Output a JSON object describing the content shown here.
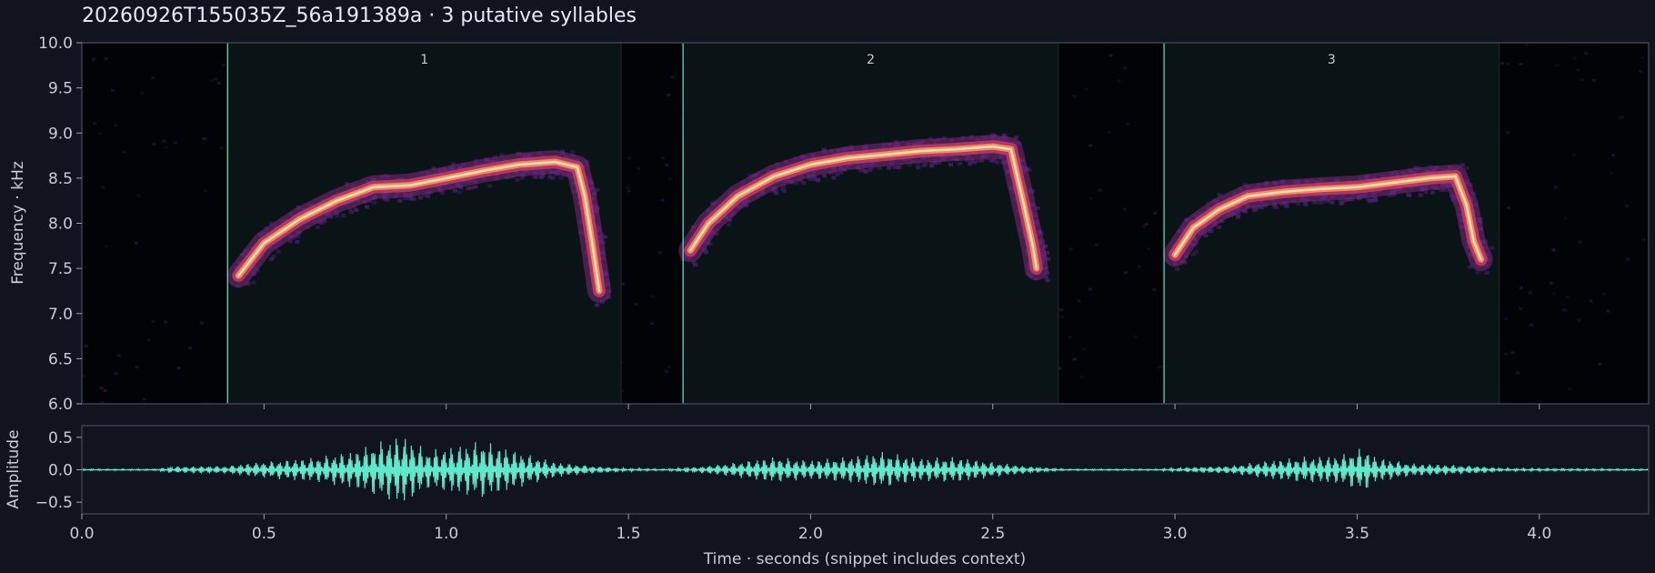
{
  "title": "20260926T155035Z_56a191389a  ·  3 putative syllables",
  "colors": {
    "background": "#11141f",
    "segment_line": "#5ed6b8",
    "waveform": "#5fe8cc",
    "spectrogram_colormap": "magma"
  },
  "chart_data": [
    {
      "type": "heatmap",
      "name": "spectrogram",
      "ylabel": "Frequency · kHz",
      "xlim": [
        0.0,
        4.3
      ],
      "ylim": [
        6.0,
        10.0
      ],
      "yticks": [
        "6.0",
        "6.5",
        "7.0",
        "7.5",
        "8.0",
        "8.5",
        "9.0",
        "9.5",
        "10.0"
      ],
      "xticks": [
        0.5,
        1.0,
        1.5,
        2.0,
        2.5,
        3.0,
        3.5,
        4.0
      ],
      "syllables": [
        {
          "label": "1",
          "start": 0.4,
          "end": 1.48
        },
        {
          "label": "2",
          "start": 1.65,
          "end": 2.68
        },
        {
          "label": "3",
          "start": 2.97,
          "end": 3.89
        }
      ],
      "contours": [
        {
          "syllable": "1",
          "points": [
            [
              0.43,
              7.42
            ],
            [
              0.5,
              7.78
            ],
            [
              0.6,
              8.05
            ],
            [
              0.7,
              8.25
            ],
            [
              0.8,
              8.4
            ],
            [
              0.9,
              8.42
            ],
            [
              1.0,
              8.5
            ],
            [
              1.1,
              8.58
            ],
            [
              1.2,
              8.65
            ],
            [
              1.3,
              8.68
            ],
            [
              1.36,
              8.62
            ],
            [
              1.38,
              8.3
            ],
            [
              1.4,
              7.8
            ],
            [
              1.42,
              7.25
            ]
          ]
        },
        {
          "syllable": "2",
          "points": [
            [
              1.67,
              7.7
            ],
            [
              1.72,
              8.0
            ],
            [
              1.8,
              8.3
            ],
            [
              1.9,
              8.52
            ],
            [
              2.0,
              8.65
            ],
            [
              2.1,
              8.72
            ],
            [
              2.2,
              8.76
            ],
            [
              2.3,
              8.8
            ],
            [
              2.4,
              8.82
            ],
            [
              2.5,
              8.85
            ],
            [
              2.55,
              8.82
            ],
            [
              2.58,
              8.3
            ],
            [
              2.61,
              7.75
            ],
            [
              2.62,
              7.5
            ]
          ]
        },
        {
          "syllable": "3",
          "points": [
            [
              3.0,
              7.65
            ],
            [
              3.05,
              7.95
            ],
            [
              3.12,
              8.15
            ],
            [
              3.2,
              8.3
            ],
            [
              3.3,
              8.35
            ],
            [
              3.4,
              8.38
            ],
            [
              3.5,
              8.4
            ],
            [
              3.6,
              8.45
            ],
            [
              3.7,
              8.5
            ],
            [
              3.77,
              8.52
            ],
            [
              3.8,
              8.2
            ],
            [
              3.82,
              7.8
            ],
            [
              3.84,
              7.6
            ]
          ]
        }
      ]
    },
    {
      "type": "line",
      "name": "waveform",
      "ylabel": "Amplitude",
      "xlabel": "Time · seconds (snippet includes context)",
      "xlim": [
        0.0,
        4.3
      ],
      "ylim": [
        -0.68,
        0.68
      ],
      "yticks": [
        "0.5",
        "0.0",
        "−0.5"
      ],
      "xticks": [
        "0.0",
        "0.5",
        "1.0",
        "1.5",
        "2.0",
        "2.5",
        "3.0",
        "3.5",
        "4.0"
      ],
      "envelope": [
        [
          0.0,
          0.01
        ],
        [
          0.2,
          0.01
        ],
        [
          0.25,
          0.05
        ],
        [
          0.4,
          0.06
        ],
        [
          0.45,
          0.1
        ],
        [
          0.55,
          0.15
        ],
        [
          0.65,
          0.2
        ],
        [
          0.75,
          0.3
        ],
        [
          0.85,
          0.5
        ],
        [
          0.88,
          0.55
        ],
        [
          0.95,
          0.3
        ],
        [
          1.05,
          0.4
        ],
        [
          1.1,
          0.45
        ],
        [
          1.2,
          0.28
        ],
        [
          1.3,
          0.12
        ],
        [
          1.4,
          0.06
        ],
        [
          1.5,
          0.02
        ],
        [
          1.6,
          0.01
        ],
        [
          1.7,
          0.05
        ],
        [
          1.8,
          0.12
        ],
        [
          1.9,
          0.2
        ],
        [
          2.0,
          0.15
        ],
        [
          2.1,
          0.2
        ],
        [
          2.2,
          0.28
        ],
        [
          2.3,
          0.18
        ],
        [
          2.4,
          0.2
        ],
        [
          2.5,
          0.12
        ],
        [
          2.6,
          0.05
        ],
        [
          2.7,
          0.01
        ],
        [
          2.95,
          0.01
        ],
        [
          3.05,
          0.04
        ],
        [
          3.15,
          0.06
        ],
        [
          3.25,
          0.14
        ],
        [
          3.35,
          0.2
        ],
        [
          3.45,
          0.22
        ],
        [
          3.52,
          0.35
        ],
        [
          3.55,
          0.2
        ],
        [
          3.65,
          0.1
        ],
        [
          3.75,
          0.08
        ],
        [
          3.85,
          0.05
        ],
        [
          3.9,
          0.02
        ],
        [
          4.3,
          0.01
        ]
      ]
    }
  ]
}
